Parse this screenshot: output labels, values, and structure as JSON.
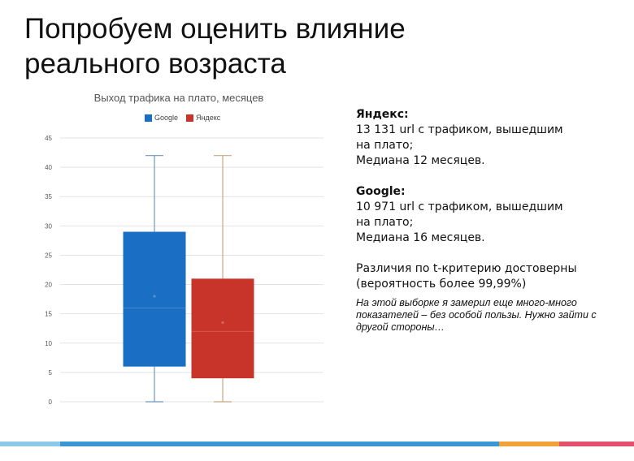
{
  "slide": {
    "title_line1": "Попробуем оценить влияние",
    "title_line2": "реального возраста"
  },
  "info": {
    "yandex_heading": "Яндекс:",
    "yandex_line1": "13 131 url с трафиком, вышедшим",
    "yandex_line2": "на плато;",
    "yandex_line3": "Медиана 12 месяцев.",
    "google_heading": "Google:",
    "google_line1": "10 971 url с трафиком, вышедшим",
    "google_line2": "на плато;",
    "google_line3": "Медиана 16 месяцев.",
    "ttest_line1": "Различия по t-критерию достоверны",
    "ttest_line2": "(вероятность более 99,99%)",
    "note": "На этой выборке я замерил еще много-много показателей – без особой пользы. Нужно зайти с другой стороны…"
  },
  "chart_data": {
    "type": "boxplot",
    "title": "Выход трафика на плато, месяцев",
    "ylim": [
      0,
      45
    ],
    "yticks": [
      "0",
      "5",
      "10",
      "15",
      "20",
      "25",
      "30",
      "35",
      "40",
      "45"
    ],
    "grid": true,
    "legend_position": "top",
    "series": [
      {
        "name": "Google",
        "color": "#1a6fc4",
        "whisker_color": "#6f97c0",
        "min": 0,
        "q1": 6,
        "median": 16,
        "q3": 29,
        "max": 42,
        "mean": 18
      },
      {
        "name": "Яндекс",
        "color": "#c9342a",
        "whisker_color": "#c8a882",
        "min": 0,
        "q1": 4,
        "median": 12,
        "q3": 21,
        "max": 42,
        "mean": 13.5
      }
    ]
  },
  "footer_colors": [
    "#8cc9e8",
    "#3b97d3",
    "#f2a23a",
    "#e4516b"
  ]
}
